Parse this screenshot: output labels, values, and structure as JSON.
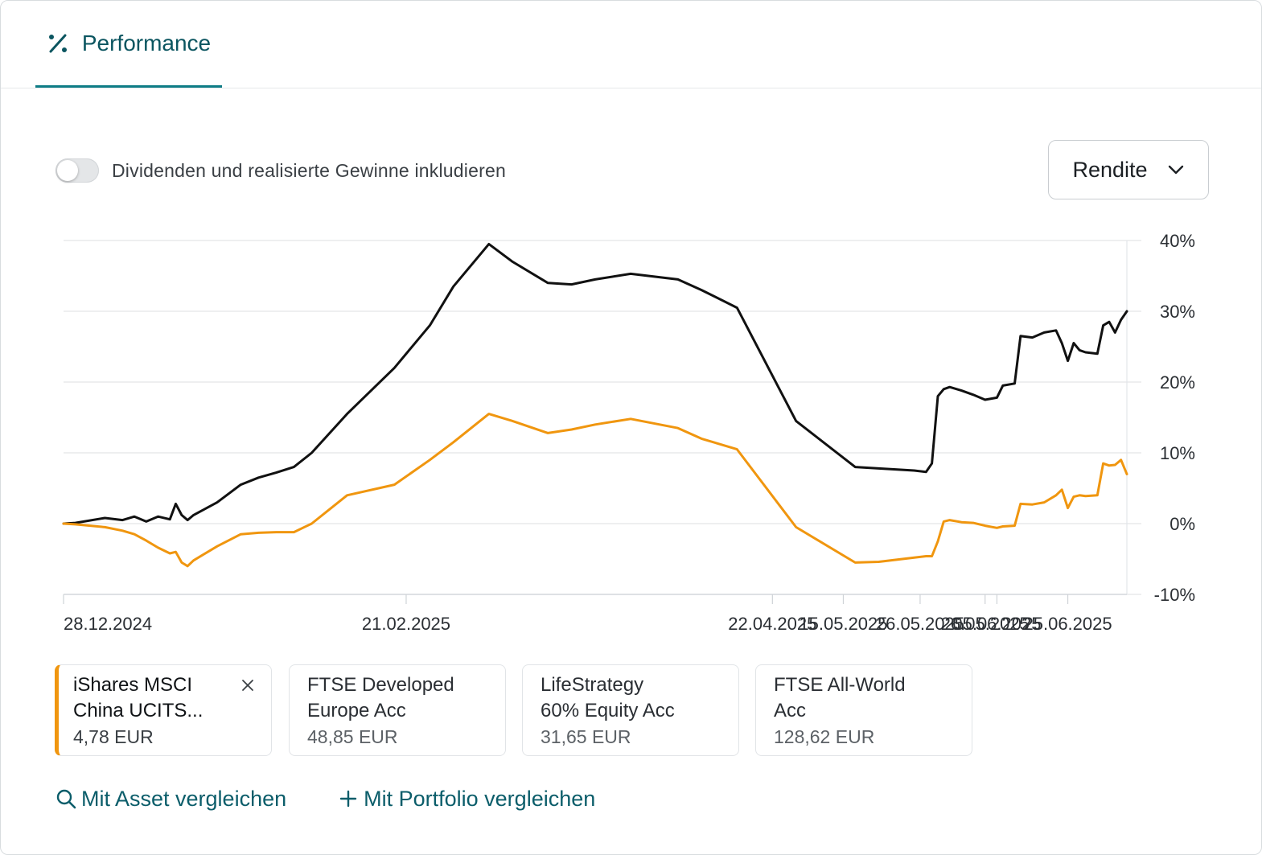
{
  "tab": {
    "label": "Performance",
    "icon": "percent-icon"
  },
  "toggle": {
    "label": "Dividenden und realisierte Gewinne inkludieren",
    "checked": false
  },
  "dropdown": {
    "selected": "Rendite",
    "icon": "chevron-down-icon"
  },
  "colors": {
    "accent": "#0e7c86",
    "series_black": "#111111",
    "series_orange": "#f0960f",
    "link": "#0b5d6a"
  },
  "chart_data": {
    "type": "line",
    "xlabel": "",
    "ylabel": "",
    "ylim": [
      -10,
      40
    ],
    "y_ticks": [
      "40%",
      "30%",
      "20%",
      "10%",
      "0%",
      "-10%"
    ],
    "x_tick_labels": [
      "28.12.2024",
      "21.02.2025",
      "22.04.2025",
      "15.05.2025",
      "26.05.2025",
      "26.05.2025",
      "05.06.2025",
      "25.06.2025"
    ],
    "grid": true,
    "x_range": [
      0,
      180
    ],
    "x_ticks": [
      0,
      58,
      120,
      132,
      145,
      156,
      158,
      170
    ],
    "series": [
      {
        "color": "#111111",
        "points": [
          [
            0,
            0
          ],
          [
            2,
            0.1
          ],
          [
            7,
            0.8
          ],
          [
            10,
            0.5
          ],
          [
            12,
            1.0
          ],
          [
            14,
            0.3
          ],
          [
            16,
            1.0
          ],
          [
            18,
            0.6
          ],
          [
            19,
            2.8
          ],
          [
            20,
            1.2
          ],
          [
            21,
            0.5
          ],
          [
            22,
            1.2
          ],
          [
            26,
            3.0
          ],
          [
            30,
            5.5
          ],
          [
            33,
            6.5
          ],
          [
            36,
            7.2
          ],
          [
            39,
            8.0
          ],
          [
            42,
            10.0
          ],
          [
            48,
            15.5
          ],
          [
            56,
            22.0
          ],
          [
            62,
            28.0
          ],
          [
            66,
            33.5
          ],
          [
            72,
            39.5
          ],
          [
            76,
            37.0
          ],
          [
            82,
            34.0
          ],
          [
            86,
            33.8
          ],
          [
            90,
            34.5
          ],
          [
            96,
            35.3
          ],
          [
            104,
            34.5
          ],
          [
            108,
            33.0
          ],
          [
            114,
            30.5
          ],
          [
            124,
            14.5
          ],
          [
            134,
            8.0
          ],
          [
            138,
            7.8
          ],
          [
            144,
            7.5
          ],
          [
            146,
            7.3
          ],
          [
            147,
            8.5
          ],
          [
            148,
            18.0
          ],
          [
            149,
            19.0
          ],
          [
            150,
            19.3
          ],
          [
            152,
            18.8
          ],
          [
            154,
            18.2
          ],
          [
            156,
            17.5
          ],
          [
            158,
            17.8
          ],
          [
            159,
            19.5
          ],
          [
            161,
            19.8
          ],
          [
            162,
            26.5
          ],
          [
            164,
            26.3
          ],
          [
            166,
            27.0
          ],
          [
            168,
            27.3
          ],
          [
            169,
            25.5
          ],
          [
            170,
            23.0
          ],
          [
            171,
            25.5
          ],
          [
            172,
            24.5
          ],
          [
            173,
            24.2
          ],
          [
            175,
            24.0
          ],
          [
            176,
            28.0
          ],
          [
            177,
            28.5
          ],
          [
            178,
            27.0
          ],
          [
            179,
            28.8
          ],
          [
            180,
            30.0
          ]
        ]
      },
      {
        "color": "#f0960f",
        "points": [
          [
            0,
            0
          ],
          [
            2,
            -0.1
          ],
          [
            7,
            -0.5
          ],
          [
            10,
            -1.0
          ],
          [
            12,
            -1.5
          ],
          [
            14,
            -2.4
          ],
          [
            16,
            -3.4
          ],
          [
            18,
            -4.2
          ],
          [
            19,
            -4.0
          ],
          [
            20,
            -5.5
          ],
          [
            21,
            -6.0
          ],
          [
            22,
            -5.2
          ],
          [
            26,
            -3.2
          ],
          [
            30,
            -1.5
          ],
          [
            33,
            -1.3
          ],
          [
            36,
            -1.2
          ],
          [
            39,
            -1.2
          ],
          [
            42,
            0.0
          ],
          [
            48,
            4.0
          ],
          [
            56,
            5.5
          ],
          [
            62,
            9.0
          ],
          [
            66,
            11.5
          ],
          [
            72,
            15.5
          ],
          [
            76,
            14.5
          ],
          [
            82,
            12.8
          ],
          [
            86,
            13.3
          ],
          [
            90,
            14.0
          ],
          [
            96,
            14.8
          ],
          [
            104,
            13.5
          ],
          [
            108,
            12.0
          ],
          [
            114,
            10.5
          ],
          [
            124,
            -0.5
          ],
          [
            134,
            -5.5
          ],
          [
            138,
            -5.4
          ],
          [
            144,
            -4.8
          ],
          [
            146,
            -4.6
          ],
          [
            147,
            -4.6
          ],
          [
            148,
            -2.5
          ],
          [
            149,
            0.3
          ],
          [
            150,
            0.5
          ],
          [
            152,
            0.2
          ],
          [
            154,
            0.1
          ],
          [
            156,
            -0.3
          ],
          [
            158,
            -0.6
          ],
          [
            159,
            -0.4
          ],
          [
            161,
            -0.3
          ],
          [
            162,
            2.8
          ],
          [
            164,
            2.7
          ],
          [
            166,
            3.0
          ],
          [
            168,
            4.0
          ],
          [
            169,
            4.8
          ],
          [
            170,
            2.2
          ],
          [
            171,
            3.8
          ],
          [
            172,
            4.0
          ],
          [
            173,
            3.9
          ],
          [
            175,
            4.0
          ],
          [
            176,
            8.5
          ],
          [
            177,
            8.2
          ],
          [
            178,
            8.3
          ],
          [
            179,
            9.0
          ],
          [
            180,
            7.0
          ]
        ]
      }
    ]
  },
  "assets": [
    {
      "name": "iShares MSCI\nChina UCITS...",
      "price": "4,78 EUR",
      "active": true,
      "close_icon": "close-icon"
    },
    {
      "name": "FTSE Developed\nEurope Acc",
      "price": "48,85 EUR",
      "active": false
    },
    {
      "name": "LifeStrategy\n60% Equity Acc",
      "price": "31,65 EUR",
      "active": false
    },
    {
      "name": "FTSE All-World\nAcc",
      "price": "128,62 EUR",
      "active": false
    }
  ],
  "actions": [
    {
      "label": "Mit Asset vergleichen",
      "icon": "search-icon"
    },
    {
      "label": "Mit Portfolio vergleichen",
      "icon": "plus-icon"
    }
  ]
}
